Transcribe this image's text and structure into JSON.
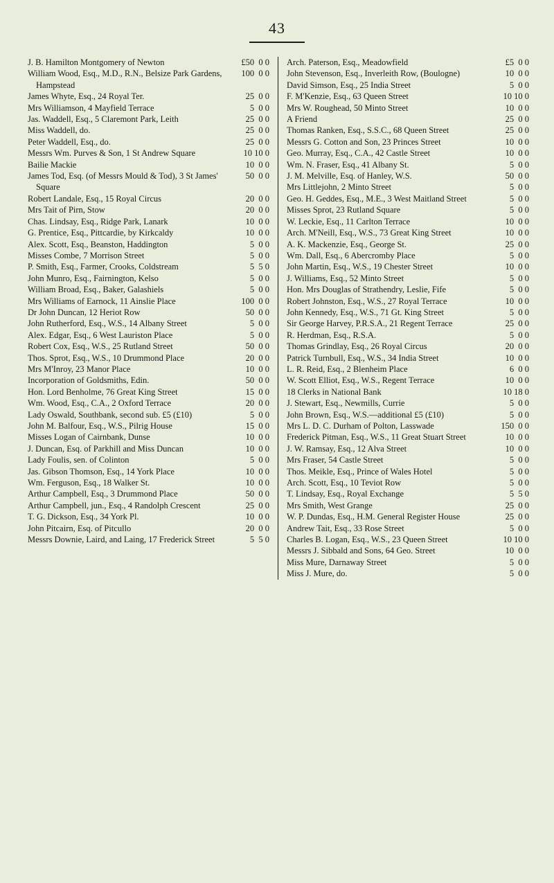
{
  "page_number": "43",
  "typography": {
    "font_family": "Century serif",
    "body_pt": 9,
    "pgnum_pt": 16
  },
  "colors": {
    "bg": "#e9eddc",
    "text": "#1a1a18",
    "rule": "#1a1a18"
  },
  "columns": {
    "left": [
      {
        "desc": "J. B. Hamilton Montgomery of Newton",
        "amount": "£50 0 0"
      },
      {
        "desc": "William Wood, Esq., M.D., R.N., Belsize Park Gardens, Hampstead",
        "amount": "100 0 0"
      },
      {
        "desc": "James Whyte, Esq., 24 Royal Ter.",
        "amount": "25 0 0"
      },
      {
        "desc": "Mrs Williamson, 4 Mayfield Terrace",
        "amount": "5 0 0"
      },
      {
        "desc": "Jas. Waddell, Esq., 5 Claremont Park, Leith",
        "amount": "25 0 0"
      },
      {
        "desc": "Miss Waddell, do.",
        "amount": "25 0 0"
      },
      {
        "desc": "Peter Waddell, Esq., do.",
        "amount": "25 0 0"
      },
      {
        "desc": "Messrs Wm. Purves & Son, 1 St Andrew Square",
        "amount": "10 10 0"
      },
      {
        "desc": "Bailie Mackie",
        "amount": "10 0 0"
      },
      {
        "desc": "James Tod, Esq. (of Messrs Mould & Tod), 3 St James' Square",
        "amount": "50 0 0"
      },
      {
        "desc": "Robert Landale, Esq., 15 Royal Circus",
        "amount": "20 0 0"
      },
      {
        "desc": "Mrs Tait of Pirn, Stow",
        "amount": "20 0 0"
      },
      {
        "desc": "Chas. Lindsay, Esq., Ridge Park, Lanark",
        "amount": "10 0 0"
      },
      {
        "desc": "G. Prentice, Esq., Pittcardie, by Kirkcaldy",
        "amount": "10 0 0"
      },
      {
        "desc": "Alex. Scott, Esq., Beanston, Haddington",
        "amount": "5 0 0"
      },
      {
        "desc": "Misses Combe, 7 Morrison Street",
        "amount": "5 0 0"
      },
      {
        "desc": "P. Smith, Esq., Farmer, Crooks, Coldstream",
        "amount": "5 5 0"
      },
      {
        "desc": "John Munro, Esq., Fairnington, Kelso",
        "amount": "5 0 0"
      },
      {
        "desc": "William Broad, Esq., Baker, Galashiels",
        "amount": "5 0 0"
      },
      {
        "desc": "Mrs Williams of Earnock, 11 Ainslie Place",
        "amount": "100 0 0"
      },
      {
        "desc": "Dr John Duncan, 12 Heriot Row",
        "amount": "50 0 0"
      },
      {
        "desc": "John Rutherford, Esq., W.S., 14 Albany Street",
        "amount": "5 0 0"
      },
      {
        "desc": "Alex. Edgar, Esq., 6 West Lauriston Place",
        "amount": "5 0 0"
      },
      {
        "desc": "Robert Cox, Esq., W.S., 25 Rutland Street",
        "amount": "50 0 0"
      },
      {
        "desc": "Thos. Sprot, Esq., W.S., 10 Drummond Place",
        "amount": "20 0 0"
      },
      {
        "desc": "Mrs M'Inroy, 23 Manor Place",
        "amount": "10 0 0"
      },
      {
        "desc": "Incorporation of Goldsmiths, Edin.",
        "amount": "50 0 0"
      },
      {
        "desc": "Hon. Lord Benholme, 76 Great King Street",
        "amount": "15 0 0"
      },
      {
        "desc": "Wm. Wood, Esq., C.A., 2 Oxford Terrace",
        "amount": "20 0 0"
      },
      {
        "desc": "Lady Oswald, Southbank, second sub. £5 (£10)",
        "amount": "5 0 0"
      },
      {
        "desc": "John M. Balfour, Esq., W.S., Pilrig House",
        "amount": "15 0 0"
      },
      {
        "desc": "Misses Logan of Cairnbank, Dunse",
        "amount": "10 0 0"
      },
      {
        "desc": "J. Duncan, Esq. of Parkhill and Miss Duncan",
        "amount": "10 0 0"
      },
      {
        "desc": "Lady Foulis, sen. of Colinton",
        "amount": "5 0 0"
      },
      {
        "desc": "Jas. Gibson Thomson, Esq., 14 York Place",
        "amount": "10 0 0"
      },
      {
        "desc": "Wm. Ferguson, Esq., 18 Walker St.",
        "amount": "10 0 0"
      },
      {
        "desc": "Arthur Campbell, Esq., 3 Drummond Place",
        "amount": "50 0 0"
      },
      {
        "desc": "Arthur Campbell, jun., Esq., 4 Randolph Crescent",
        "amount": "25 0 0"
      },
      {
        "desc": "T. G. Dickson, Esq., 34 York Pl.",
        "amount": "10 0 0"
      },
      {
        "desc": "John Pitcairn, Esq. of Pitcullo",
        "amount": "20 0 0"
      },
      {
        "desc": "Messrs Downie, Laird, and Laing, 17 Frederick Street",
        "amount": "5 5 0"
      }
    ],
    "right": [
      {
        "desc": "Arch. Paterson, Esq., Meadowfield",
        "amount": "£5 0 0"
      },
      {
        "desc": "John Stevenson, Esq., Inverleith Row, (Boulogne)",
        "amount": "10 0 0"
      },
      {
        "desc": "David Simson, Esq., 25 India Street",
        "amount": "5 0 0"
      },
      {
        "desc": "F. M'Kenzie, Esq., 63 Queen Street",
        "amount": "10 10 0"
      },
      {
        "desc": "Mrs W. Roughead, 50 Minto Street",
        "amount": "10 0 0"
      },
      {
        "desc": "A Friend",
        "amount": "25 0 0"
      },
      {
        "desc": "Thomas Ranken, Esq., S.S.C., 68 Queen Street",
        "amount": "25 0 0"
      },
      {
        "desc": "Messrs G. Cotton and Son, 23 Princes Street",
        "amount": "10 0 0"
      },
      {
        "desc": "Geo. Murray, Esq., C.A., 42 Castle Street",
        "amount": "10 0 0"
      },
      {
        "desc": "Wm. N. Fraser, Esq., 41 Albany St.",
        "amount": "5 0 0"
      },
      {
        "desc": "J. M. Melville, Esq. of Hanley, W.S.",
        "amount": "50 0 0"
      },
      {
        "desc": "Mrs Littlejohn, 2 Minto Street",
        "amount": "5 0 0"
      },
      {
        "desc": "Geo. H. Geddes, Esq., M.E., 3 West Maitland Street",
        "amount": "5 0 0"
      },
      {
        "desc": "Misses Sprot, 23 Rutland Square",
        "amount": "5 0 0"
      },
      {
        "desc": "W. Leckie, Esq., 11 Carlton Terrace",
        "amount": "10 0 0"
      },
      {
        "desc": "Arch. M'Neill, Esq., W.S., 73 Great King Street",
        "amount": "10 0 0"
      },
      {
        "desc": "A. K. Mackenzie, Esq., George St.",
        "amount": "25 0 0"
      },
      {
        "desc": "Wm. Dall, Esq., 6 Abercromby Place",
        "amount": "5 0 0"
      },
      {
        "desc": "John Martin, Esq., W.S., 19 Chester Street",
        "amount": "10 0 0"
      },
      {
        "desc": "J. Williams, Esq., 52 Minto Street",
        "amount": "5 0 0"
      },
      {
        "desc": "Hon. Mrs Douglas of Strathendry, Leslie, Fife",
        "amount": "5 0 0"
      },
      {
        "desc": "Robert Johnston, Esq., W.S., 27 Royal Terrace",
        "amount": "10 0 0"
      },
      {
        "desc": "John Kennedy, Esq., W.S., 71 Gt. King Street",
        "amount": "5 0 0"
      },
      {
        "desc": "Sir George Harvey, P.R.S.A., 21 Regent Terrace",
        "amount": "25 0 0"
      },
      {
        "desc": "R. Herdman, Esq., R.S.A.",
        "amount": "5 0 0"
      },
      {
        "desc": "Thomas Grindlay, Esq., 26 Royal Circus",
        "amount": "20 0 0"
      },
      {
        "desc": "Patrick Turnbull, Esq., W.S., 34 India Street",
        "amount": "10 0 0"
      },
      {
        "desc": "L. R. Reid, Esq., 2 Blenheim Place",
        "amount": "6 0 0"
      },
      {
        "desc": "W. Scott Elliot, Esq., W.S., Regent Terrace",
        "amount": "10 0 0"
      },
      {
        "desc": "18 Clerks in National Bank",
        "amount": "10 18 0"
      },
      {
        "desc": "J. Stewart, Esq., Newmills, Currie",
        "amount": "5 0 0"
      },
      {
        "desc": "John Brown, Esq., W.S.—additional £5 (£10)",
        "amount": "5 0 0"
      },
      {
        "desc": "Mrs L. D. C. Durham of Polton, Lasswade",
        "amount": "150 0 0"
      },
      {
        "desc": "Frederick Pitman, Esq., W.S., 11 Great Stuart Street",
        "amount": "10 0 0"
      },
      {
        "desc": "J. W. Ramsay, Esq., 12 Alva Street",
        "amount": "10 0 0"
      },
      {
        "desc": "Mrs Fraser, 54 Castle Street",
        "amount": "5 0 0"
      },
      {
        "desc": "Thos. Meikle, Esq., Prince of Wales Hotel",
        "amount": "5 0 0"
      },
      {
        "desc": "Arch. Scott, Esq., 10 Teviot Row",
        "amount": "5 0 0"
      },
      {
        "desc": "T. Lindsay, Esq., Royal Exchange",
        "amount": "5 5 0"
      },
      {
        "desc": "Mrs Smith, West Grange",
        "amount": "25 0 0"
      },
      {
        "desc": "W. P. Dundas, Esq., H.M. General Register House",
        "amount": "25 0 0"
      },
      {
        "desc": "Andrew Tait, Esq., 33 Rose Street",
        "amount": "5 0 0"
      },
      {
        "desc": "Charles B. Logan, Esq., W.S., 23 Queen Street",
        "amount": "10 10 0"
      },
      {
        "desc": "Messrs J. Sibbald and Sons, 64 Geo. Street",
        "amount": "10 0 0"
      },
      {
        "desc": "Miss Mure, Darnaway Street",
        "amount": "5 0 0"
      },
      {
        "desc": "Miss J. Mure, do.",
        "amount": "5 0 0"
      }
    ]
  }
}
